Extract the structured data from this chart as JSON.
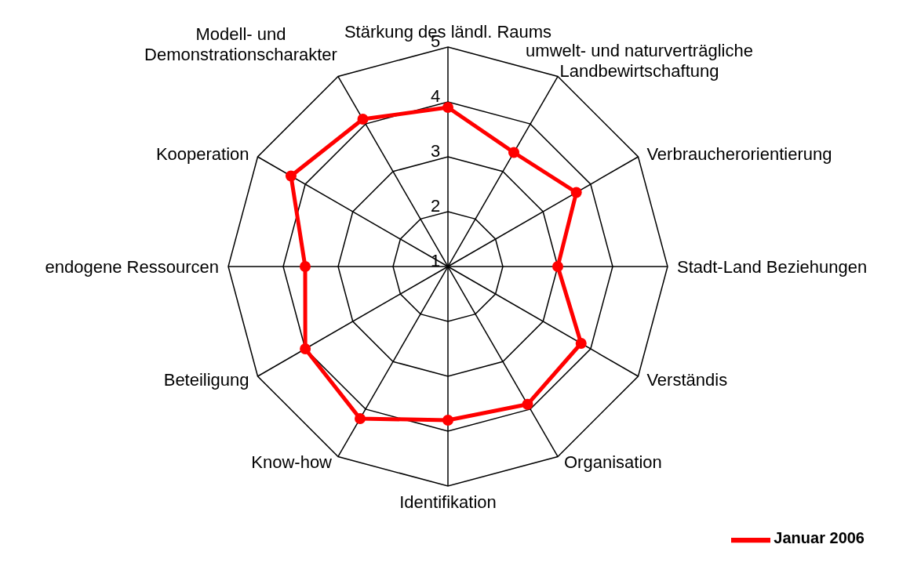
{
  "chart_data": {
    "type": "radar",
    "categories": [
      "Stärkung des ländl. Raums",
      "umwelt- und naturverträgliche\nLandbewirtschaftung",
      "Verbraucherorientierung",
      "Stadt-Land Beziehungen",
      "Verständis",
      "Organisation",
      "Identifikation",
      "Know-how",
      "Beteiligung",
      "endogene Ressourcen",
      "Kooperation",
      "Modell- und\nDemonstrationscharakter"
    ],
    "series": [
      {
        "name": "Januar 2006",
        "color": "#ff0000",
        "values": [
          3.9,
          3.4,
          3.7,
          3.0,
          3.8,
          3.9,
          3.8,
          4.2,
          4.0,
          3.6,
          4.3,
          4.1
        ]
      }
    ],
    "ylim": [
      1,
      5
    ],
    "yticks": [
      1,
      2,
      3,
      4,
      5
    ],
    "grid": true,
    "legend": "bottom right",
    "marker": "circle"
  }
}
